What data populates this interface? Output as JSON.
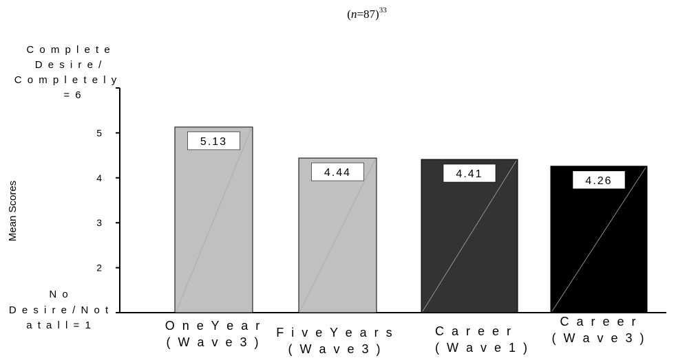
{
  "chart_data": {
    "type": "bar",
    "subtitle_parts": {
      "pre": "(",
      "n": "n",
      "eq": "=87)",
      "sup": "33"
    },
    "ylabel": "Mean Scores",
    "ylim": [
      1,
      6
    ],
    "yticks": [
      1,
      2,
      3,
      4,
      5,
      6
    ],
    "ytick_labels": [
      "",
      "2",
      "3",
      "4",
      "5",
      ""
    ],
    "y_top_label": [
      "C o m p l e t e",
      "D e s i r e /",
      "C o m p l e t e l y",
      "= 6"
    ],
    "y_bottom_label": [
      "N o",
      "D e s i r e / N o t",
      "a t  a l l  =  1"
    ],
    "categories": [
      [
        "O n e  Y e a r",
        "( W  a v e  3 )"
      ],
      [
        "F i v e  Y e a r s",
        "( W  a v e  3 )"
      ],
      [
        "C a r e e r",
        "( W  a v e  1 )"
      ],
      [
        "C a r e e r",
        "( W  a v e  3 )"
      ]
    ],
    "values": [
      5.13,
      4.44,
      4.41,
      4.26
    ],
    "data_labels": [
      "5.13",
      "4.44",
      "4.41",
      "4.26"
    ],
    "bar_colors": [
      "#c0c0c0",
      "#c0c0c0",
      "#333333",
      "#000000"
    ],
    "grid": false
  }
}
